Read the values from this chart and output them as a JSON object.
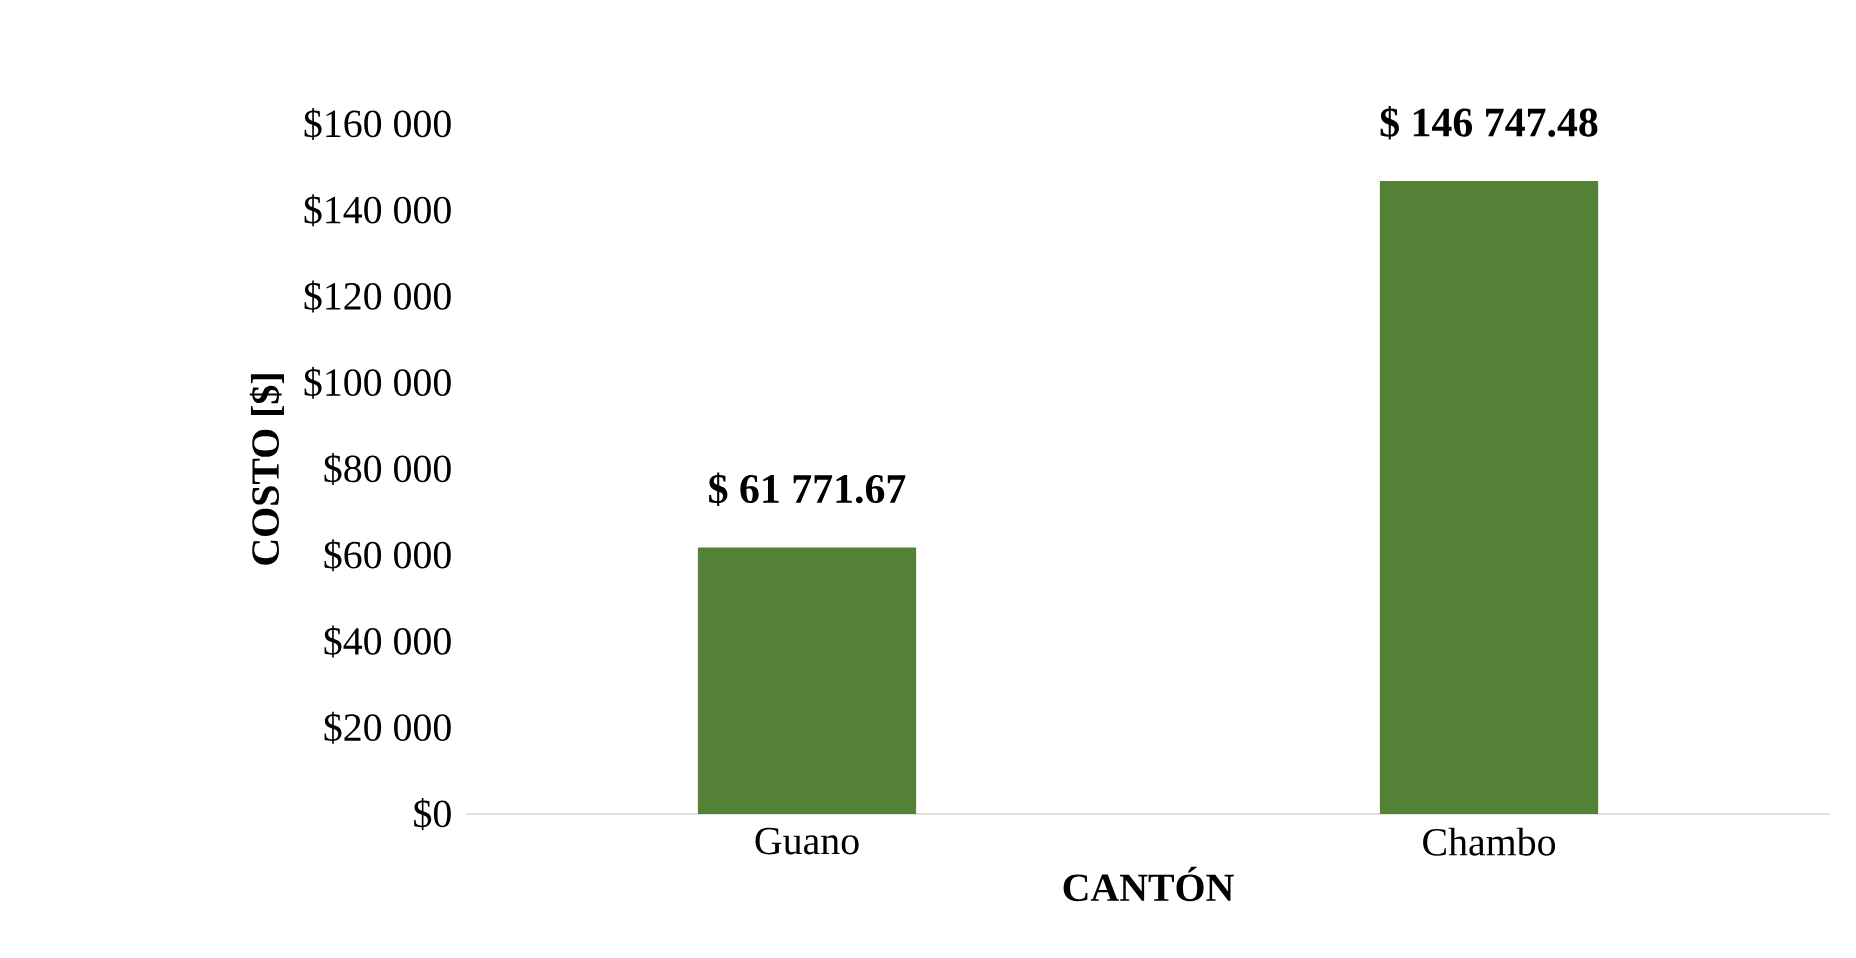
{
  "chart_data": {
    "type": "bar",
    "categories": [
      "Guano",
      "Chambo"
    ],
    "values": [
      61771.67,
      146747.48
    ],
    "value_labels": [
      "$ 61 771.67",
      "$ 146 747.48"
    ],
    "color": "#538135",
    "xlabel": "CANTÓN",
    "ylabel": "COSTO [$]",
    "ylim": [
      0,
      160000
    ],
    "yticks": [
      {
        "value": 0,
        "label": "$0"
      },
      {
        "value": 20000,
        "label": "$20 000"
      },
      {
        "value": 40000,
        "label": "$40 000"
      },
      {
        "value": 60000,
        "label": "$60 000"
      },
      {
        "value": 80000,
        "label": "$80 000"
      },
      {
        "value": 100000,
        "label": "$100 000"
      },
      {
        "value": 120000,
        "label": "$120 000"
      },
      {
        "value": 140000,
        "label": "$140 000"
      },
      {
        "value": 160000,
        "label": "$160 000"
      }
    ]
  }
}
